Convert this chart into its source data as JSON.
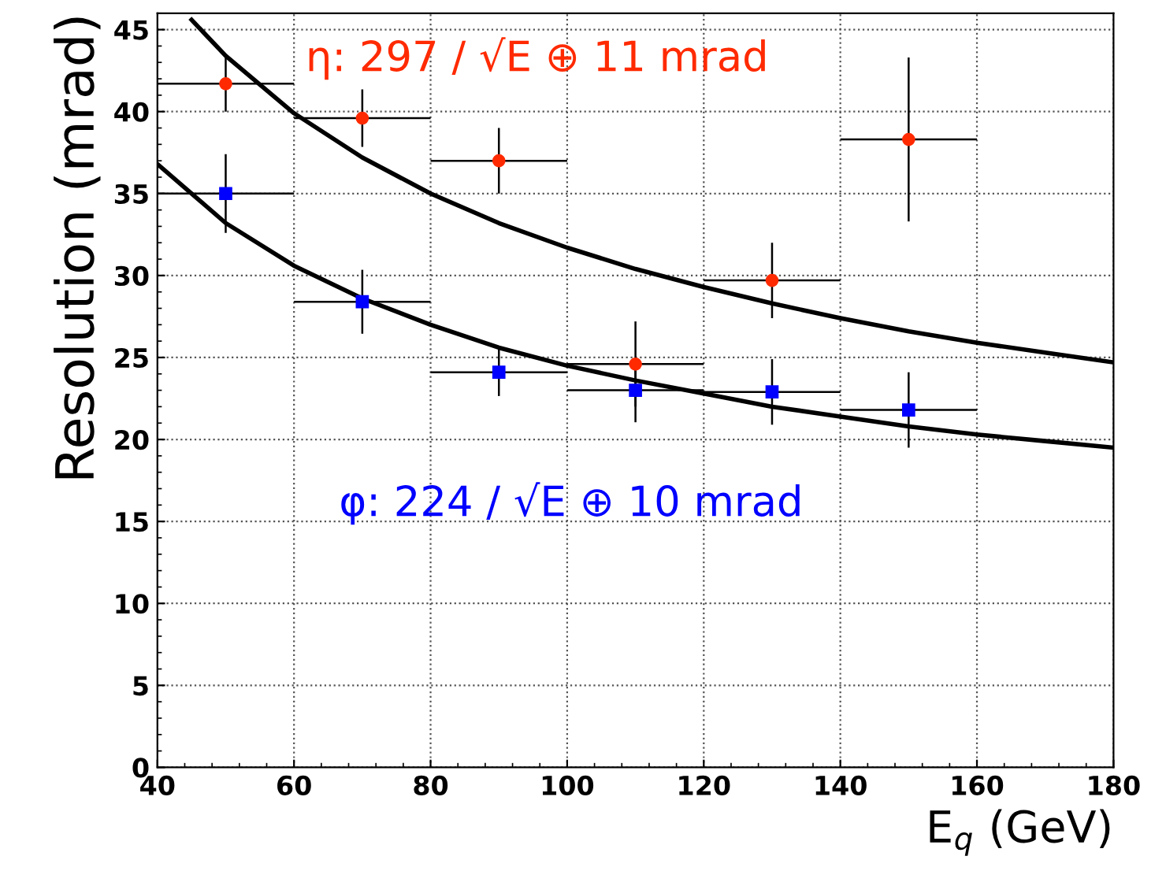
{
  "chart_data": {
    "type": "scatter",
    "xlabel": "E$_{q}$ (GeV)",
    "ylabel": "Resolution (mrad)",
    "annotations": [
      "η: 297 / √E ⊕ 11 mrad",
      "φ: 224 / √E ⊕ 10 mrad"
    ],
    "series": [
      {
        "color": "#ff2a00",
        "marker": "circle",
        "x": [
          50,
          70,
          90,
          110,
          130,
          150
        ],
        "values": [
          41.7,
          39.6,
          37.0,
          24.6,
          29.7,
          38.3
        ],
        "errors": [
          1.7,
          1.75,
          2.0,
          2.6,
          2.3,
          5.0
        ],
        "xerrors": [
          10,
          10,
          10,
          10,
          10,
          10
        ]
      },
      {
        "color": "#0000ff",
        "marker": "square",
        "x": [
          50,
          70,
          90,
          110,
          130,
          150
        ],
        "values": [
          35.0,
          28.4,
          24.1,
          23.0,
          22.9,
          21.8
        ],
        "errors": [
          2.4,
          1.95,
          1.45,
          1.95,
          2.0,
          2.3
        ],
        "xerrors": [
          10,
          10,
          10,
          10,
          10,
          10
        ]
      },
      {
        "type": "line",
        "color": "#000000",
        "x": [
          45,
          50,
          60,
          70,
          80,
          90,
          100,
          110,
          120,
          130,
          140,
          150,
          160,
          170,
          180
        ],
        "values": [
          45.6,
          43.4,
          39.9,
          37.2,
          35.0,
          33.2,
          31.7,
          30.4,
          29.3,
          28.3,
          27.4,
          26.6,
          25.9,
          25.3,
          24.7
        ]
      },
      {
        "type": "line",
        "color": "#000000",
        "x": [
          40,
          50,
          60,
          70,
          80,
          90,
          100,
          110,
          120,
          130,
          140,
          150,
          160,
          170,
          180
        ],
        "values": [
          36.8,
          33.2,
          30.6,
          28.6,
          27.0,
          25.6,
          24.5,
          23.6,
          22.8,
          22.0,
          21.4,
          20.8,
          20.3,
          19.9,
          19.5
        ]
      }
    ],
    "xlim": [
      40,
      180
    ],
    "ylim": [
      0,
      46
    ],
    "xticks": [
      40,
      60,
      80,
      100,
      120,
      140,
      160,
      180
    ],
    "yticks": [
      0,
      5,
      10,
      15,
      20,
      25,
      30,
      35,
      40,
      45
    ],
    "grid": true,
    "line_style": "solid",
    "legend": false
  }
}
